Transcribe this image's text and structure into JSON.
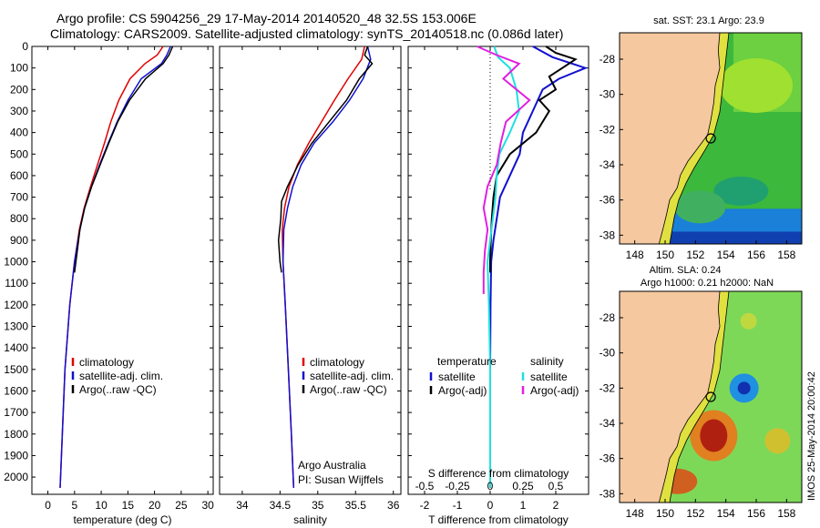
{
  "title": {
    "line1": "Argo profile: CS 5904256_29 17-May-2014 20140520_48 32.5S 153.006E",
    "line2": "Climatology: CARS2009. Satellite-adjusted climatology: synTS_20140518.nc (0.086d later)"
  },
  "side_stamp": "IMOS 25-May-2014 20:00:42",
  "colors": {
    "climatology": "#e00000",
    "satellite": "#1010d0",
    "argo": "#000000",
    "sal_satellite": "#20e0e0",
    "sal_argo": "#e020e0",
    "land": "#f5c8a0"
  },
  "chart_data": [
    {
      "type": "line",
      "xlabel": "temperature (deg C)",
      "ylabel": "",
      "xlim": [
        -3,
        31
      ],
      "ylim": [
        0,
        2080
      ],
      "y_reversed": true,
      "xticks": [
        "0",
        "5",
        "10",
        "15",
        "20",
        "25",
        "30"
      ],
      "yticks": [
        "0",
        "100",
        "200",
        "300",
        "400",
        "500",
        "600",
        "700",
        "800",
        "900",
        "1000",
        "1100",
        "1200",
        "1300",
        "1400",
        "1500",
        "1600",
        "1700",
        "1800",
        "1900",
        "2000"
      ],
      "legend": [
        "climatology",
        "satellite-adj. clim.",
        "Argo(..raw -QC)"
      ],
      "legend_position": "lower-right",
      "series": [
        {
          "name": "climatology",
          "depth": [
            0,
            40,
            80,
            150,
            250,
            350,
            450,
            550,
            650,
            750,
            850,
            1000,
            1200,
            1500,
            1800,
            2050
          ],
          "values": [
            21.6,
            20.5,
            18.2,
            15.4,
            13.3,
            11.8,
            10.6,
            9.3,
            8.0,
            6.8,
            5.9,
            5.0,
            4.1,
            3.2,
            2.7,
            2.3
          ]
        },
        {
          "name": "satellite-adj. clim.",
          "depth": [
            0,
            40,
            80,
            150,
            250,
            350,
            450,
            550,
            650,
            750,
            850,
            1000,
            1200,
            1500,
            1800,
            2050
          ],
          "values": [
            23.0,
            22.3,
            21.3,
            17.5,
            15.0,
            13.0,
            11.3,
            9.7,
            8.2,
            6.9,
            6.0,
            5.0,
            4.1,
            3.2,
            2.7,
            2.3
          ]
        },
        {
          "name": "Argo(..raw -QC)",
          "depth": [
            0,
            40,
            80,
            150,
            250,
            350,
            450,
            550,
            650,
            750,
            850,
            950,
            1050
          ],
          "values": [
            23.4,
            22.7,
            21.6,
            18.3,
            15.3,
            13.1,
            11.4,
            9.8,
            8.2,
            6.9,
            6.0,
            5.5,
            5.0
          ]
        }
      ]
    },
    {
      "type": "line",
      "xlabel": "salinity",
      "ylabel": "",
      "xlim": [
        33.7,
        36.1
      ],
      "ylim": [
        0,
        2080
      ],
      "y_reversed": true,
      "xticks": [
        "34",
        "34.5",
        "35",
        "35.5",
        "36"
      ],
      "legend": [
        "climatology",
        "satellite-adj. clim.",
        "Argo(..raw -QC)"
      ],
      "legend_position": "lower-right",
      "annotation": [
        "Argo Australia",
        "PI: Susan Wijffels"
      ],
      "series": [
        {
          "name": "climatology",
          "depth": [
            0,
            60,
            150,
            250,
            350,
            450,
            550,
            650,
            750,
            850,
            1000,
            1200,
            1500,
            1800,
            2050
          ],
          "values": [
            35.62,
            35.58,
            35.4,
            35.22,
            35.05,
            34.88,
            34.73,
            34.62,
            34.56,
            34.53,
            34.54,
            34.57,
            34.61,
            34.65,
            34.68
          ]
        },
        {
          "name": "satellite-adj. clim.",
          "depth": [
            0,
            60,
            150,
            250,
            350,
            450,
            550,
            650,
            750,
            850,
            1000,
            1200,
            1500,
            1800,
            2050
          ],
          "values": [
            35.66,
            35.7,
            35.6,
            35.42,
            35.2,
            34.95,
            34.78,
            34.67,
            34.6,
            34.55,
            34.54,
            34.57,
            34.61,
            34.65,
            34.68
          ]
        },
        {
          "name": "Argo(..raw -QC)",
          "depth": [
            0,
            40,
            80,
            150,
            250,
            350,
            450,
            550,
            650,
            720,
            800,
            900,
            1000,
            1050
          ],
          "values": [
            35.66,
            35.62,
            35.72,
            35.55,
            35.38,
            35.15,
            34.92,
            34.74,
            34.6,
            34.52,
            34.51,
            34.48,
            34.5,
            34.52
          ]
        }
      ]
    },
    {
      "type": "line",
      "xlabel": "T difference from climatology",
      "xlabel2": "S difference from climatology",
      "xlim": [
        -2.5,
        3.0
      ],
      "ylim": [
        0,
        2080
      ],
      "y_reversed": true,
      "xticks": [
        "-2",
        "-1",
        "0",
        "1",
        "2"
      ],
      "xticks_top": [
        "-0.5",
        "-0.25",
        "0",
        "0.25",
        "0.5"
      ],
      "legend_temperature_title": "temperature",
      "legend_salinity_title": "salinity",
      "legend": [
        "satellite",
        "Argo(-adj)",
        "satellite",
        "Argo(-adj)"
      ],
      "series": [
        {
          "name": "temperature satellite",
          "depth": [
            0,
            50,
            100,
            150,
            200,
            300,
            400,
            500,
            600,
            700,
            800,
            900,
            1000,
            1200,
            1500,
            1800,
            2050
          ],
          "values": [
            1.3,
            1.9,
            2.9,
            2.1,
            1.6,
            1.3,
            1.0,
            0.9,
            0.6,
            0.3,
            0.2,
            0.1,
            0.03,
            0.01,
            0.0,
            0.0,
            0.0
          ]
        },
        {
          "name": "temperature Argo(-adj)",
          "depth": [
            0,
            30,
            60,
            100,
            140,
            200,
            250,
            300,
            400,
            500,
            600,
            700,
            800,
            900,
            1000,
            1050
          ],
          "values": [
            1.7,
            2.0,
            2.6,
            2.2,
            1.8,
            2.0,
            1.5,
            1.8,
            1.4,
            0.6,
            0.2,
            0.1,
            0.05,
            0.02,
            0.0,
            0.0
          ]
        },
        {
          "name": "salinity satellite",
          "depth": [
            0,
            50,
            100,
            200,
            300,
            400,
            500,
            600,
            700,
            800,
            900,
            1000,
            1200,
            1500,
            1800,
            2050
          ],
          "values": [
            0.03,
            0.06,
            0.15,
            0.2,
            0.22,
            0.15,
            0.07,
            0.05,
            0.04,
            0.02,
            0.0,
            -0.02,
            -0.01,
            0.0,
            0.0,
            0.0
          ]
        },
        {
          "name": "salinity Argo(-adj)",
          "depth": [
            0,
            40,
            80,
            150,
            250,
            350,
            450,
            550,
            650,
            750,
            850,
            950,
            1050,
            1150
          ],
          "values": [
            -0.1,
            0.05,
            0.22,
            0.1,
            0.3,
            0.12,
            0.08,
            0.05,
            -0.02,
            -0.05,
            -0.02,
            -0.04,
            -0.05,
            -0.05
          ]
        }
      ]
    },
    {
      "type": "heatmap",
      "title": "sat. SST: 23.1  Argo: 23.9",
      "xlim": [
        147,
        159
      ],
      "ylim": [
        -38.5,
        -26.5
      ],
      "xticks": [
        "148",
        "150",
        "152",
        "154",
        "156",
        "158"
      ],
      "yticks": [
        "-28",
        "-30",
        "-32",
        "-34",
        "-36",
        "-38"
      ],
      "marker": {
        "lon": 153.006,
        "lat": -32.5
      }
    },
    {
      "type": "heatmap",
      "title": "Altim. SLA: 0.24",
      "subtitle": "Argo h1000: 0.21 h2000: NaN",
      "xlim": [
        147,
        159
      ],
      "ylim": [
        -38.5,
        -26.5
      ],
      "xticks": [
        "148",
        "150",
        "152",
        "154",
        "156",
        "158"
      ],
      "yticks": [
        "-28",
        "-30",
        "-32",
        "-34",
        "-36",
        "-38"
      ],
      "marker": {
        "lon": 153.006,
        "lat": -32.5
      }
    }
  ]
}
